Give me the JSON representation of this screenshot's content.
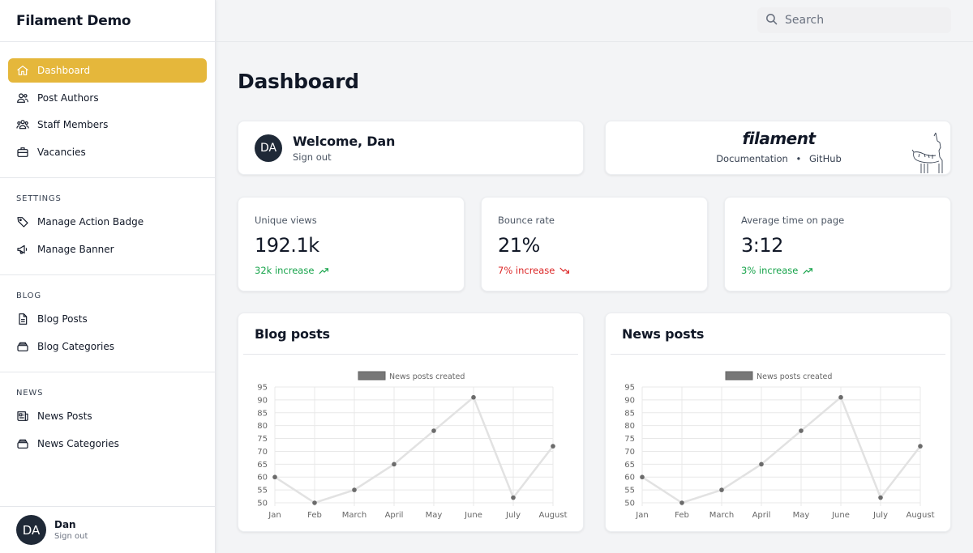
{
  "app": {
    "title": "Filament Demo"
  },
  "sidebar": {
    "items": [
      {
        "label": "Dashboard",
        "icon": "home-icon",
        "active": true
      },
      {
        "label": "Post Authors",
        "icon": "users-icon"
      },
      {
        "label": "Staff Members",
        "icon": "user-group-icon"
      },
      {
        "label": "Vacancies",
        "icon": "briefcase-icon"
      }
    ],
    "groups": [
      {
        "title": "SETTINGS",
        "items": [
          {
            "label": "Manage Action Badge",
            "icon": "tag-icon"
          },
          {
            "label": "Manage Banner",
            "icon": "megaphone-icon"
          }
        ]
      },
      {
        "title": "BLOG",
        "items": [
          {
            "label": "Blog Posts",
            "icon": "document-icon"
          },
          {
            "label": "Blog Categories",
            "icon": "collection-icon"
          }
        ]
      },
      {
        "title": "NEWS",
        "items": [
          {
            "label": "News Posts",
            "icon": "newspaper-icon"
          },
          {
            "label": "News Categories",
            "icon": "collection-icon"
          }
        ]
      }
    ],
    "user": {
      "initials": "DA",
      "name": "Dan",
      "action": "Sign out"
    }
  },
  "search": {
    "placeholder": "Search"
  },
  "page": {
    "title": "Dashboard"
  },
  "welcome": {
    "initials": "DA",
    "greeting": "Welcome, Dan",
    "action": "Sign out"
  },
  "filament": {
    "logo": "filament",
    "docs": "Documentation",
    "sep": "•",
    "github": "GitHub"
  },
  "stats": [
    {
      "label": "Unique views",
      "value": "192.1k",
      "delta": "32k increase",
      "trend": "up"
    },
    {
      "label": "Bounce rate",
      "value": "21%",
      "delta": "7% increase",
      "trend": "down"
    },
    {
      "label": "Average time on page",
      "value": "3:12",
      "delta": "3% increase",
      "trend": "up"
    }
  ],
  "colors": {
    "accent": "#e5b73b",
    "positive": "#16a34a",
    "negative": "#dc2626",
    "line": "#e2e2e2",
    "point": "#6b6b6b"
  },
  "chart_data": [
    {
      "type": "line",
      "title": "Blog posts",
      "categories": [
        "Jan",
        "Feb",
        "March",
        "April",
        "May",
        "June",
        "July",
        "August"
      ],
      "series": [
        {
          "name": "News posts created",
          "values": [
            60,
            50,
            55,
            65,
            78,
            91,
            52,
            72
          ]
        }
      ],
      "yticks": [
        50,
        55,
        60,
        65,
        70,
        75,
        80,
        85,
        90,
        95
      ],
      "ylim": [
        50,
        95
      ],
      "grid": true,
      "legend": "top"
    },
    {
      "type": "line",
      "title": "News posts",
      "categories": [
        "Jan",
        "Feb",
        "March",
        "April",
        "May",
        "June",
        "July",
        "August"
      ],
      "series": [
        {
          "name": "News posts created",
          "values": [
            60,
            50,
            55,
            65,
            78,
            91,
            52,
            72
          ]
        }
      ],
      "yticks": [
        50,
        55,
        60,
        65,
        70,
        75,
        80,
        85,
        90,
        95
      ],
      "ylim": [
        50,
        95
      ],
      "grid": true,
      "legend": "top"
    }
  ]
}
